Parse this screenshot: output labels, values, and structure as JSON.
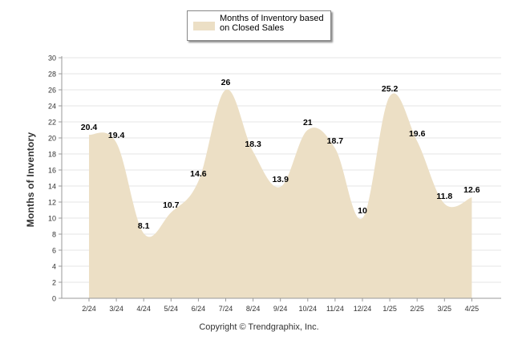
{
  "chart_data": {
    "type": "area",
    "categories": [
      "2/24",
      "3/24",
      "4/24",
      "5/24",
      "6/24",
      "7/24",
      "8/24",
      "9/24",
      "10/24",
      "11/24",
      "12/24",
      "1/25",
      "2/25",
      "3/25",
      "4/25"
    ],
    "series": [
      {
        "name": "Months of Inventory based on Closed Sales",
        "values": [
          20.4,
          19.4,
          8.1,
          10.7,
          14.6,
          26,
          18.3,
          13.9,
          21,
          18.7,
          10,
          25.2,
          19.6,
          11.8,
          12.6
        ]
      }
    ],
    "data_labels": [
      "20.4",
      "19.4",
      "8.1",
      "10.7",
      "14.6",
      "26",
      "18.3",
      "13.9",
      "21",
      "18.7",
      "10",
      "25.2",
      "19.6",
      "11.8",
      "12.6"
    ],
    "yticks": [
      "0",
      "2",
      "4",
      "6",
      "8",
      "10",
      "12",
      "14",
      "16",
      "18",
      "20",
      "22",
      "24",
      "26",
      "28",
      "30"
    ],
    "ylim": [
      0,
      30
    ],
    "xlabel": "",
    "ylabel": "Months of Inventory",
    "grid": true,
    "legend": "top",
    "fill_color": "#ecdfc5"
  },
  "legend": {
    "label": "Months of Inventory based on Closed Sales"
  },
  "footer": {
    "copyright": "Copyright © Trendgraphix, Inc."
  }
}
